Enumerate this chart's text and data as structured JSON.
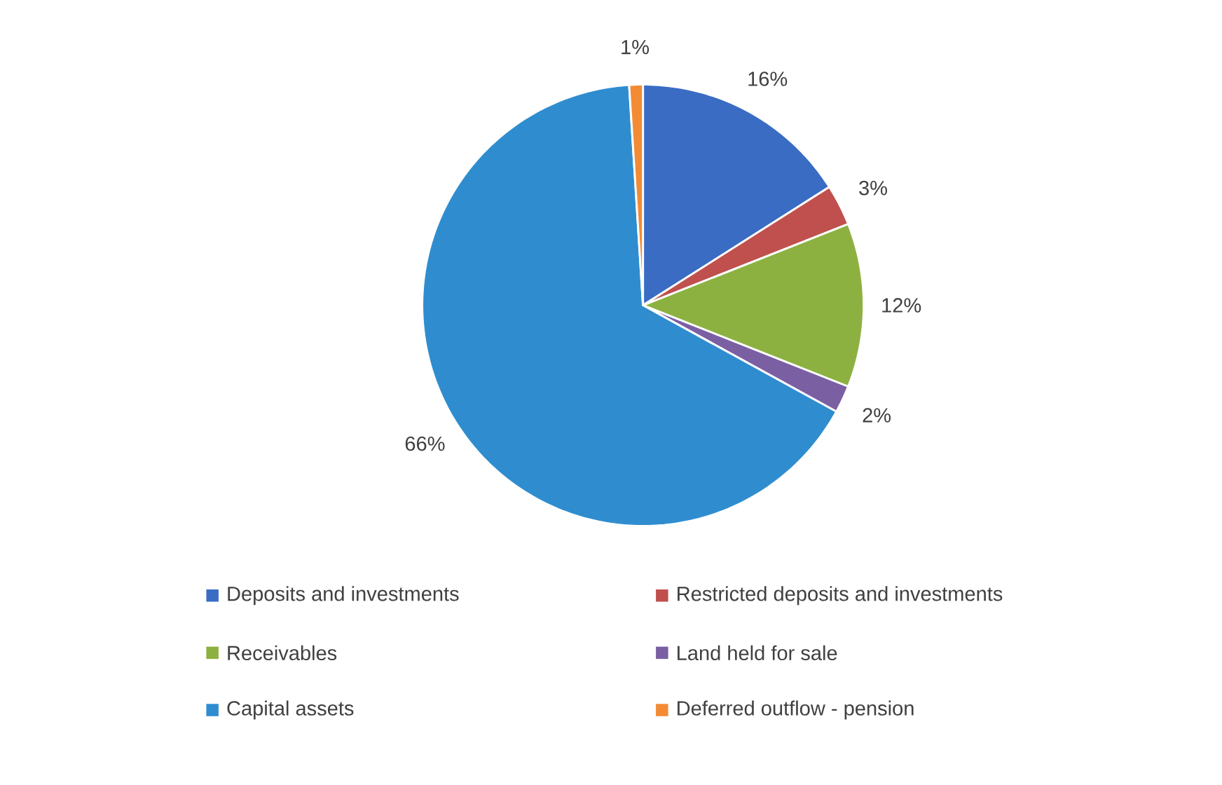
{
  "chart_data": {
    "type": "pie",
    "categories": [
      "Deposits and investments",
      "Restricted deposits and investments",
      "Receivables",
      "Land held for sale",
      "Capital assets",
      "Deferred outflow - pension"
    ],
    "values": [
      16,
      3,
      12,
      2,
      66,
      1
    ],
    "colors": [
      "#3a6cc4",
      "#c0504d",
      "#8cb141",
      "#7b5fa3",
      "#2f8dcf",
      "#f38b35"
    ],
    "value_labels": [
      "16%",
      "3%",
      "12%",
      "2%",
      "66%",
      "1%"
    ],
    "legend": "bottom"
  }
}
